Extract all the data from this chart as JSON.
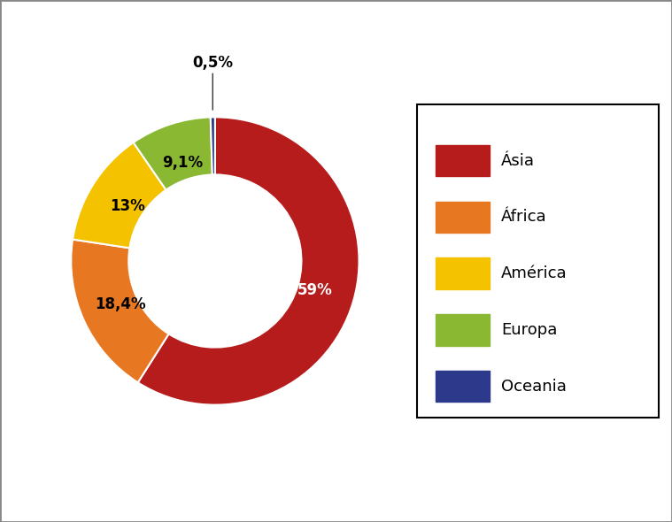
{
  "labels": [
    "Ásia",
    "África",
    "América",
    "Europa",
    "Oceania"
  ],
  "values": [
    59.0,
    18.4,
    13.0,
    9.1,
    0.5
  ],
  "colors": [
    "#b71c1c",
    "#e87722",
    "#f5c200",
    "#8ab833",
    "#2d3a8c"
  ],
  "pct_labels": [
    "59%",
    "18,4%",
    "13%",
    "9,1%",
    "0,5%"
  ],
  "wedge_labels_fontsize": 12,
  "legend_fontsize": 13,
  "figure_background": "#ffffff",
  "donut_width": 0.4,
  "start_angle": 90,
  "border_color": "#888888"
}
